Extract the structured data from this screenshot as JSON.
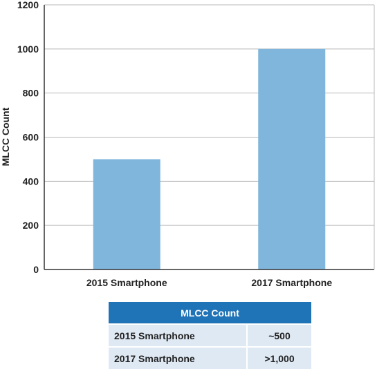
{
  "colors": {
    "bar": "#80b6dc",
    "grid": "#b8b8b8",
    "axis": "#333333",
    "header": "#1f73b7",
    "cell": "#dfe9f4"
  },
  "chart_data": {
    "type": "bar",
    "categories": [
      "2015 Smartphone",
      "2017 Smartphone"
    ],
    "values": [
      500,
      1000
    ],
    "title": "",
    "xlabel": "",
    "ylabel": "MLCC Count",
    "ylim": [
      0,
      1200
    ],
    "yticks": [
      0,
      200,
      400,
      600,
      800,
      1000,
      1200
    ],
    "grid": true,
    "legend": "none"
  },
  "table": {
    "header": "MLCC Count",
    "rows": [
      {
        "label": "2015 Smartphone",
        "value": "~500"
      },
      {
        "label": "2017 Smartphone",
        "value": ">1,000"
      }
    ]
  }
}
